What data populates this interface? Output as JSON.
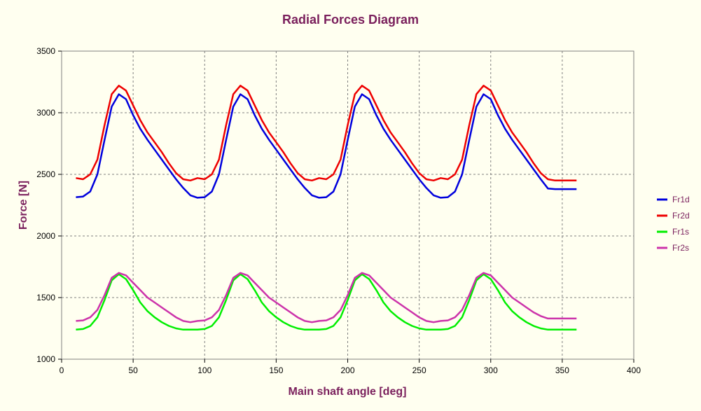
{
  "chart_data": {
    "type": "line",
    "title": "Radial Forces Diagram",
    "xlabel": "Main shaft angle [deg]",
    "ylabel": "Force [N]",
    "xlim": [
      0,
      400
    ],
    "ylim": [
      1000,
      3500
    ],
    "xticks": [
      0,
      50,
      100,
      150,
      200,
      250,
      300,
      350,
      400
    ],
    "yticks": [
      1000,
      1500,
      2000,
      2500,
      3000,
      3500
    ],
    "grid": true,
    "legend_position": "right",
    "x": [
      10,
      15,
      20,
      25,
      30,
      35,
      40,
      45,
      50,
      55,
      60,
      65,
      70,
      75,
      80,
      85,
      90,
      95,
      100,
      105,
      110,
      115,
      120,
      125,
      130,
      135,
      140,
      145,
      150,
      155,
      160,
      165,
      170,
      175,
      180,
      185,
      190,
      195,
      200,
      205,
      210,
      215,
      220,
      225,
      230,
      235,
      240,
      245,
      250,
      255,
      260,
      265,
      270,
      275,
      280,
      285,
      290,
      295,
      300,
      305,
      310,
      315,
      320,
      325,
      330,
      335,
      340,
      345,
      350,
      355,
      360
    ],
    "series": [
      {
        "name": "Fr1d",
        "color": "#0000dd",
        "values": [
          2315,
          2320,
          2360,
          2500,
          2780,
          3050,
          3150,
          3110,
          2980,
          2870,
          2780,
          2700,
          2620,
          2540,
          2460,
          2390,
          2330,
          2310,
          2315,
          2360,
          2500,
          2780,
          3050,
          3150,
          3110,
          2980,
          2870,
          2780,
          2700,
          2620,
          2540,
          2460,
          2390,
          2330,
          2310,
          2315,
          2360,
          2500,
          2780,
          3050,
          3150,
          3110,
          2980,
          2870,
          2780,
          2700,
          2620,
          2540,
          2460,
          2390,
          2330,
          2310,
          2315,
          2360,
          2500,
          2780,
          3050,
          3150,
          3110,
          2980,
          2870,
          2780,
          2700,
          2620,
          2540,
          2460,
          2385,
          2380,
          2380,
          2380,
          2380
        ]
      },
      {
        "name": "Fr2d",
        "color": "#ee0000",
        "values": [
          2470,
          2460,
          2500,
          2620,
          2900,
          3150,
          3220,
          3180,
          3060,
          2940,
          2840,
          2760,
          2680,
          2590,
          2510,
          2460,
          2450,
          2470,
          2460,
          2500,
          2620,
          2900,
          3150,
          3220,
          3180,
          3060,
          2940,
          2840,
          2760,
          2680,
          2590,
          2510,
          2460,
          2450,
          2470,
          2460,
          2500,
          2620,
          2900,
          3150,
          3220,
          3180,
          3060,
          2940,
          2840,
          2760,
          2680,
          2590,
          2510,
          2460,
          2450,
          2470,
          2460,
          2500,
          2620,
          2900,
          3150,
          3220,
          3180,
          3060,
          2940,
          2840,
          2760,
          2680,
          2590,
          2510,
          2460,
          2450,
          2450,
          2450,
          2450
        ]
      },
      {
        "name": "Fr1s",
        "color": "#00ee00",
        "values": [
          1240,
          1245,
          1270,
          1340,
          1480,
          1640,
          1690,
          1650,
          1560,
          1460,
          1390,
          1340,
          1300,
          1270,
          1250,
          1240,
          1240,
          1240,
          1245,
          1270,
          1340,
          1480,
          1640,
          1690,
          1650,
          1560,
          1460,
          1390,
          1340,
          1300,
          1270,
          1250,
          1240,
          1240,
          1240,
          1245,
          1270,
          1340,
          1480,
          1640,
          1690,
          1650,
          1560,
          1460,
          1390,
          1340,
          1300,
          1270,
          1250,
          1240,
          1240,
          1240,
          1245,
          1270,
          1340,
          1480,
          1640,
          1690,
          1650,
          1560,
          1460,
          1390,
          1340,
          1300,
          1270,
          1250,
          1240,
          1240,
          1240,
          1240,
          1240
        ]
      },
      {
        "name": "Fr2s",
        "color": "#cc33aa",
        "values": [
          1310,
          1315,
          1340,
          1400,
          1520,
          1660,
          1700,
          1680,
          1620,
          1560,
          1500,
          1460,
          1420,
          1380,
          1340,
          1310,
          1300,
          1310,
          1315,
          1340,
          1400,
          1520,
          1660,
          1700,
          1680,
          1620,
          1560,
          1500,
          1460,
          1420,
          1380,
          1340,
          1310,
          1300,
          1310,
          1315,
          1340,
          1400,
          1520,
          1660,
          1700,
          1680,
          1620,
          1560,
          1500,
          1460,
          1420,
          1380,
          1340,
          1310,
          1300,
          1310,
          1315,
          1340,
          1400,
          1520,
          1660,
          1700,
          1680,
          1620,
          1560,
          1500,
          1460,
          1420,
          1380,
          1350,
          1330,
          1330,
          1330,
          1330,
          1330
        ]
      }
    ]
  }
}
